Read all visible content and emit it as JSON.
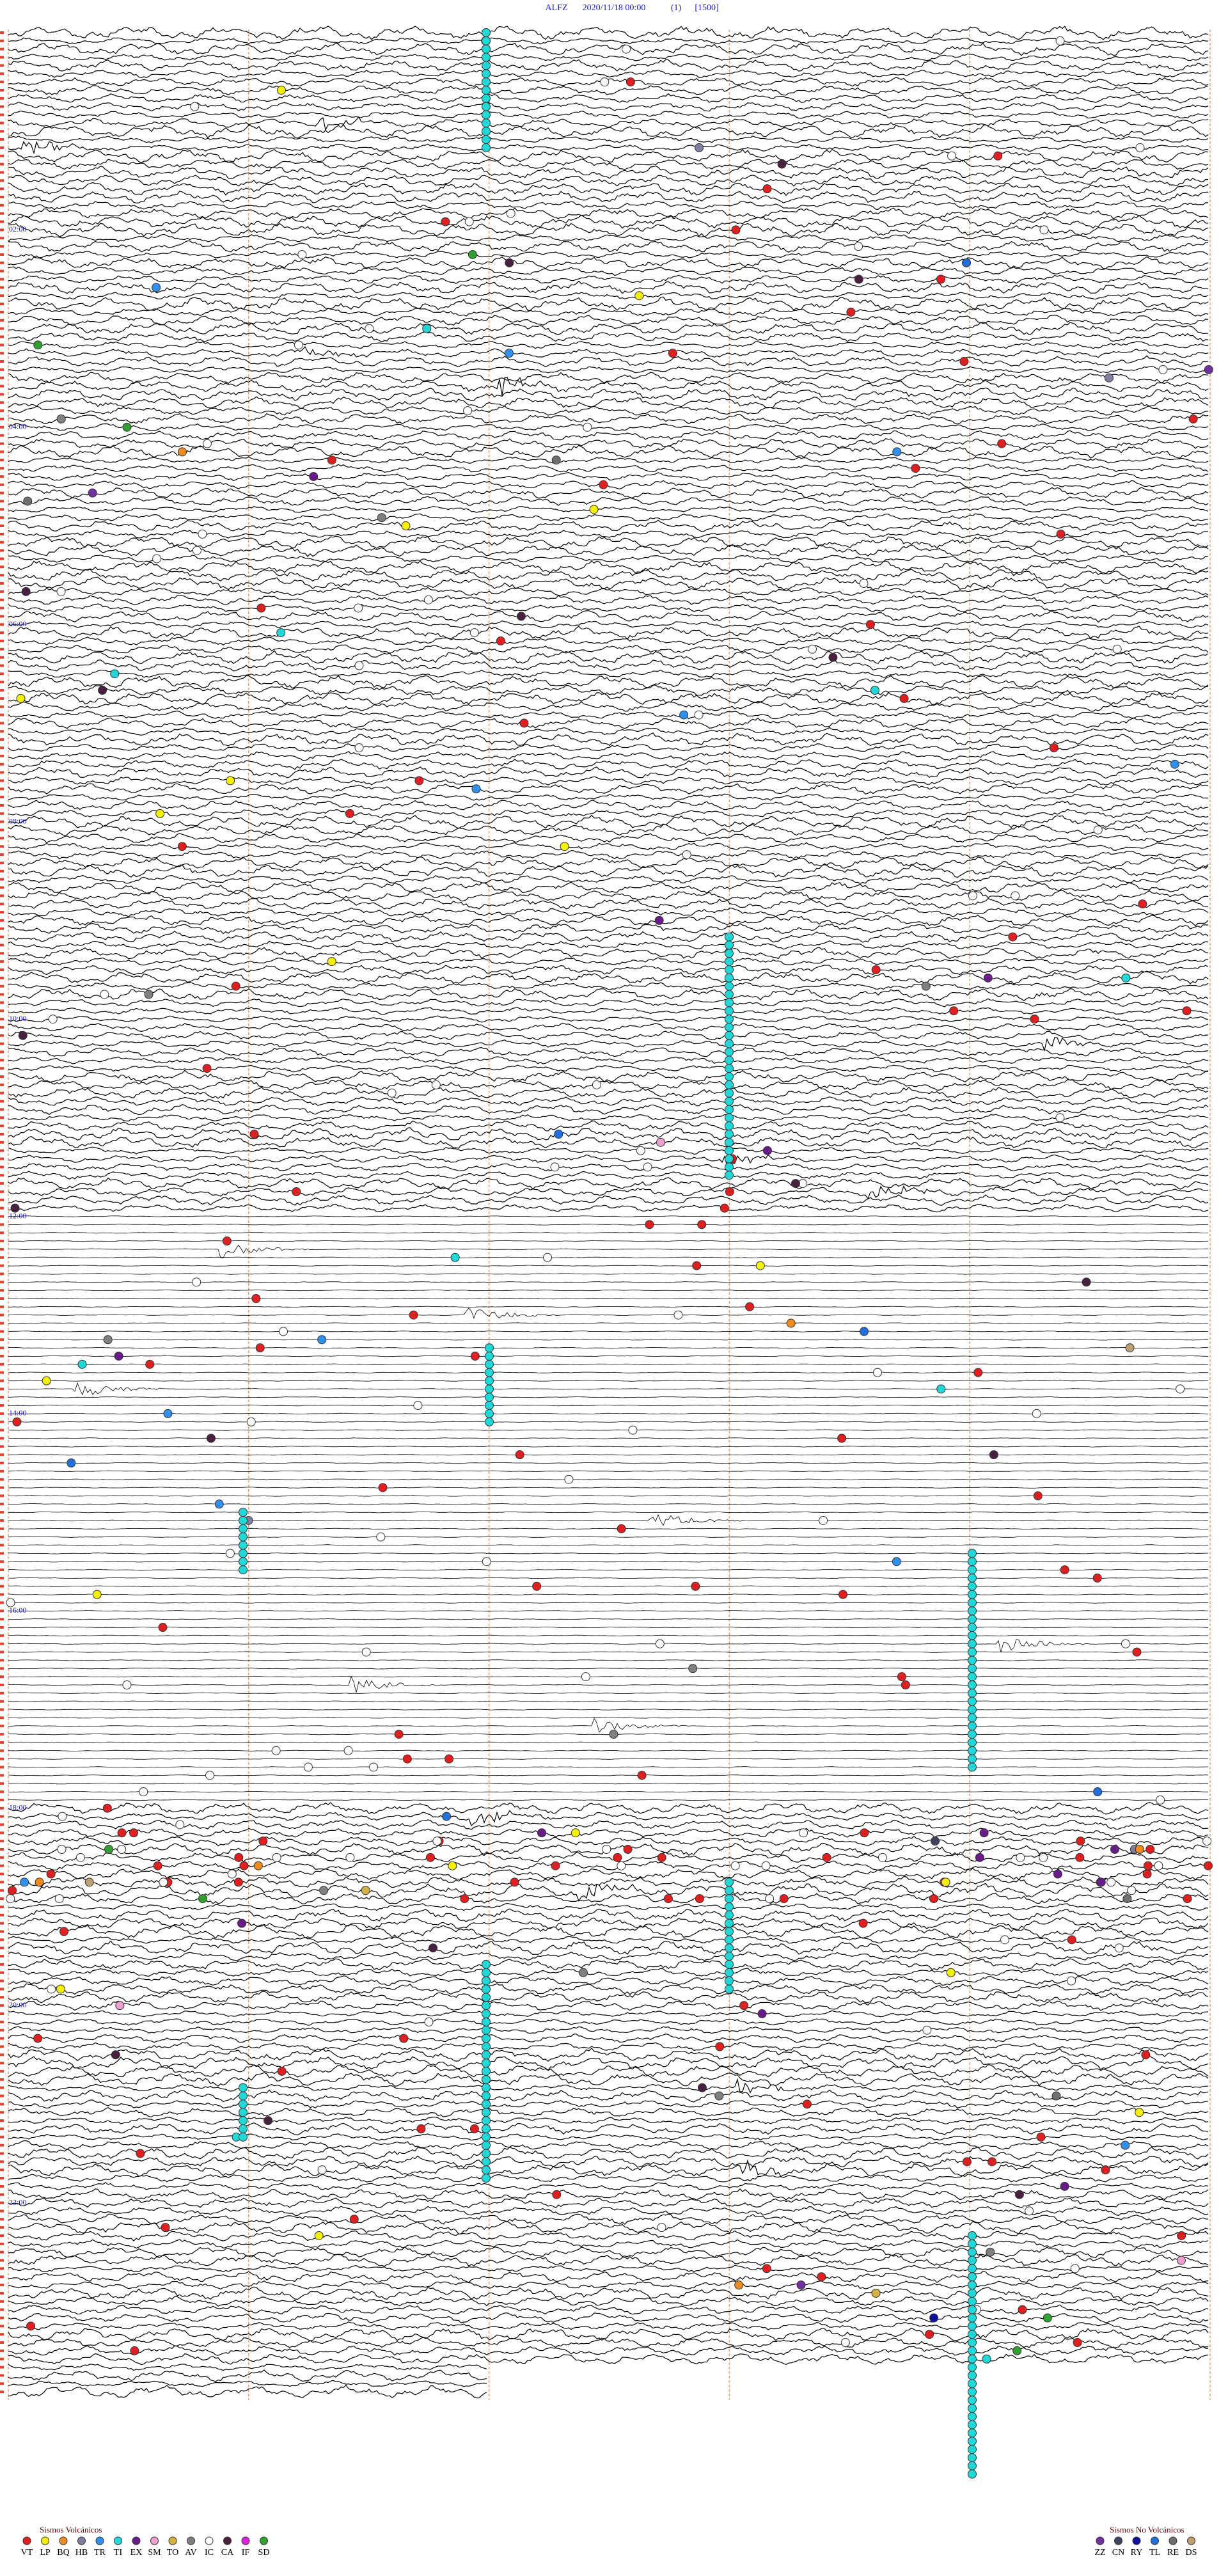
{
  "header": {
    "station": "ALFZ",
    "datetime": "2020/11/18 00:00",
    "channel": "(1)",
    "scale": "[1500]"
  },
  "time_labels": [
    "02:00",
    "04:00",
    "06:00",
    "08:00",
    "10:00",
    "12:00",
    "14:00",
    "16:00",
    "18:00",
    "20:00",
    "22:00"
  ],
  "legend_volcanic": {
    "title": "Sismos Volcánicos",
    "items": [
      {
        "code": "VT",
        "color": "#e02020"
      },
      {
        "code": "LP",
        "color": "#f5f000"
      },
      {
        "code": "BQ",
        "color": "#f08c1e"
      },
      {
        "code": "HB",
        "color": "#8080a0"
      },
      {
        "code": "TR",
        "color": "#3090f0"
      },
      {
        "code": "TI",
        "color": "#20d8d8"
      },
      {
        "code": "EX",
        "color": "#6a1a8a"
      },
      {
        "code": "SM",
        "color": "#f0a0d0"
      },
      {
        "code": "TO",
        "color": "#d8b040"
      },
      {
        "code": "AV",
        "color": "#808080"
      },
      {
        "code": "IC",
        "color": "#ffffff"
      },
      {
        "code": "CA",
        "color": "#4a2040"
      },
      {
        "code": "IF",
        "color": "#e020e0"
      },
      {
        "code": "SD",
        "color": "#30a030"
      }
    ]
  },
  "legend_non_volcanic": {
    "title": "Sismos No Volcánicos",
    "items": [
      {
        "code": "ZZ",
        "color": "#7030a0"
      },
      {
        "code": "CN",
        "color": "#404060"
      },
      {
        "code": "RY",
        "color": "#1010a0"
      },
      {
        "code": "TL",
        "color": "#2070e0"
      },
      {
        "code": "RE",
        "color": "#707070"
      },
      {
        "code": "DS",
        "color": "#c0a070"
      }
    ]
  }
}
